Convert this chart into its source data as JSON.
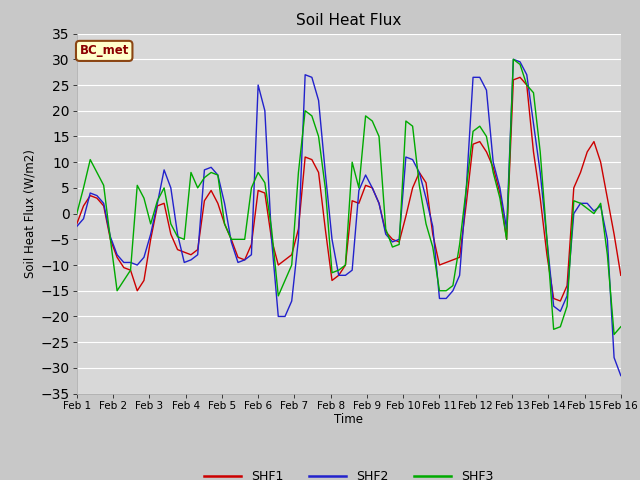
{
  "title": "Soil Heat Flux",
  "ylabel": "Soil Heat Flux (W/m2)",
  "xlabel": "Time",
  "ylim": [
    -35,
    35
  ],
  "yticks": [
    -35,
    -30,
    -25,
    -20,
    -15,
    -10,
    -5,
    0,
    5,
    10,
    15,
    20,
    25,
    30,
    35
  ],
  "annotation": "BC_met",
  "fig_facecolor": "#c8c8c8",
  "ax_facecolor": "#d8d8d8",
  "shf1_color": "#cc0000",
  "shf2_color": "#2222cc",
  "shf3_color": "#00aa00",
  "xtick_labels": [
    "Feb 1",
    "Feb 2",
    "Feb 3",
    "Feb 4",
    "Feb 5",
    "Feb 6",
    "Feb 7",
    "Feb 8",
    "Feb 9",
    "Feb 10",
    "Feb 11",
    "Feb 12",
    "Feb 13",
    "Feb 14",
    "Feb 15",
    "Feb 16"
  ],
  "shf1": [
    -2.0,
    1.5,
    3.5,
    3.0,
    1.5,
    -5.0,
    -8.5,
    -10.5,
    -11.0,
    -15.0,
    -13.0,
    -5.0,
    1.5,
    2.0,
    -4.0,
    -7.0,
    -7.5,
    -8.0,
    -7.0,
    2.5,
    4.5,
    2.0,
    -2.0,
    -5.0,
    -8.5,
    -9.0,
    -6.0,
    4.5,
    4.0,
    -5.0,
    -10.0,
    -9.0,
    -8.0,
    -3.0,
    11.0,
    10.5,
    8.0,
    -3.0,
    -13.0,
    -12.0,
    -10.0,
    2.5,
    2.0,
    5.5,
    5.0,
    2.0,
    -3.5,
    -5.0,
    -5.5,
    -0.5,
    5.0,
    8.0,
    6.0,
    -4.0,
    -10.0,
    -9.5,
    -9.0,
    -8.5,
    2.0,
    13.5,
    14.0,
    12.0,
    9.0,
    4.0,
    -5.0,
    26.0,
    26.5,
    25.0,
    12.0,
    3.0,
    -8.0,
    -16.5,
    -17.0,
    -14.0,
    5.0,
    8.0,
    12.0,
    14.0,
    10.0,
    3.0,
    -4.0,
    -12.0
  ],
  "shf2": [
    -2.5,
    -1.0,
    4.0,
    3.5,
    2.0,
    -4.5,
    -8.0,
    -9.5,
    -9.5,
    -10.0,
    -8.5,
    -4.0,
    2.0,
    8.5,
    5.0,
    -4.0,
    -9.5,
    -9.0,
    -8.0,
    8.5,
    9.0,
    7.5,
    2.0,
    -5.5,
    -9.5,
    -9.0,
    -8.0,
    25.0,
    20.0,
    -5.0,
    -20.0,
    -20.0,
    -17.0,
    -5.0,
    27.0,
    26.5,
    22.0,
    8.0,
    -5.0,
    -12.0,
    -12.0,
    -11.0,
    4.5,
    7.5,
    5.0,
    2.0,
    -4.0,
    -5.5,
    -5.0,
    11.0,
    10.5,
    8.0,
    3.0,
    -2.5,
    -16.5,
    -16.5,
    -15.0,
    -12.0,
    5.0,
    26.5,
    26.5,
    24.0,
    10.0,
    5.0,
    -3.0,
    30.0,
    29.5,
    27.0,
    17.5,
    8.0,
    -5.0,
    -18.0,
    -19.0,
    -16.0,
    0.0,
    2.0,
    2.0,
    0.5,
    1.5,
    -5.0,
    -28.0,
    -31.5
  ],
  "shf3": [
    0.0,
    5.0,
    10.5,
    8.0,
    5.5,
    -5.0,
    -15.0,
    -13.0,
    -11.0,
    5.5,
    3.0,
    -2.0,
    2.5,
    5.0,
    -2.0,
    -4.5,
    -5.0,
    8.0,
    5.0,
    7.0,
    8.0,
    7.5,
    -2.0,
    -5.0,
    -5.0,
    -5.0,
    5.0,
    8.0,
    6.0,
    -3.0,
    -16.0,
    -13.0,
    -10.0,
    8.0,
    20.0,
    19.0,
    15.0,
    5.0,
    -11.5,
    -11.0,
    -10.0,
    10.0,
    5.0,
    19.0,
    18.0,
    15.0,
    -3.0,
    -6.5,
    -6.0,
    18.0,
    17.0,
    5.5,
    -2.0,
    -6.5,
    -15.0,
    -15.0,
    -14.0,
    -6.0,
    5.0,
    16.0,
    17.0,
    15.0,
    8.0,
    3.0,
    -5.0,
    30.0,
    29.0,
    25.0,
    23.5,
    12.0,
    -5.0,
    -22.5,
    -22.0,
    -18.0,
    2.5,
    2.0,
    1.0,
    0.0,
    2.0,
    -8.0,
    -23.5,
    -22.0
  ]
}
